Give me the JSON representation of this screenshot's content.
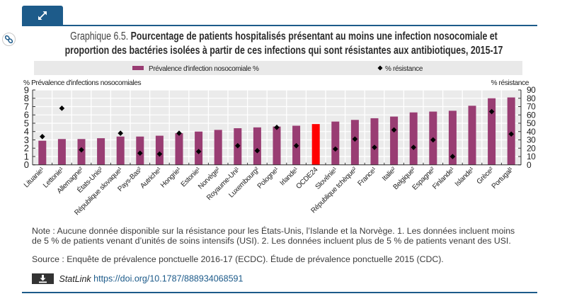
{
  "header": {
    "expand_icon": "expand-arrows-icon",
    "link_icon": "chain-link-icon"
  },
  "title": {
    "label": "Graphique 6.5.",
    "line1": "Pourcentage de patients hospitalisés présentant au moins une infection nosocomiale et",
    "line2": "proportion des bactéries isolées à partir de ces infections qui sont résistantes aux antibiotiques, 2015-17"
  },
  "colors": {
    "accent": "#1d5b8a",
    "bar": "#993d73",
    "highlight_bar": "#ff0000",
    "marker": "#000000",
    "plot_background": "#ebebeb",
    "legend_background": "#e9e9e9"
  },
  "chart_data": {
    "type": "bar",
    "title": "Pourcentage de patients hospitalisés présentant au moins une infection nosocomiale et proportion des bactéries isolées à partir de ces infections qui sont résistantes aux antibiotiques, 2015-17",
    "legend": [
      {
        "name": "Prévalence d'infection nosocomiale %",
        "marker": "bar"
      },
      {
        "name": "% résistance",
        "marker": "diamond"
      }
    ],
    "legend_position": "top",
    "xlabel": "",
    "ylabel": "% Prévalence d'infections nosocomiales",
    "y2label": "% résistance",
    "ylim": [
      0,
      9
    ],
    "y2lim": [
      0,
      90
    ],
    "yticks": [
      0,
      1,
      2,
      3,
      4,
      5,
      6,
      7,
      8,
      9
    ],
    "y2ticks": [
      0,
      10,
      20,
      30,
      40,
      50,
      60,
      70,
      80,
      90
    ],
    "grid": true,
    "highlight_category": "OCDE24",
    "categories": [
      "Lituanie¹",
      "Lettonie¹",
      "Allemagne²",
      "États-Unis²",
      "République slovaque¹",
      "Pays-Bas²",
      "Autriche¹",
      "Hongrie¹",
      "Estonie¹",
      "Norvège²",
      "Royaume-Uni¹",
      "Luxembourg²",
      "Pologne¹",
      "Irlande¹",
      "OCDE24",
      "Slovénie¹",
      "République tchèque²",
      "France¹",
      "Italie²",
      "Belgique²",
      "Espagne²",
      "Finlande¹",
      "Islande¹",
      "Grèce²",
      "Portugal¹"
    ],
    "series": [
      {
        "name": "Prévalence d'infection nosocomiale %",
        "type": "bar",
        "axis": "left",
        "values": [
          2.9,
          3.1,
          3.1,
          3.2,
          3.4,
          3.4,
          3.5,
          3.8,
          4.0,
          4.2,
          4.4,
          4.5,
          4.6,
          4.7,
          4.9,
          5.2,
          5.4,
          5.6,
          5.8,
          6.3,
          6.4,
          6.5,
          7.1,
          8.0,
          8.1
        ]
      },
      {
        "name": "% résistance",
        "type": "scatter",
        "axis": "right",
        "values": [
          34,
          68,
          18,
          null,
          38,
          14,
          13,
          38,
          16,
          null,
          23,
          17,
          45,
          23,
          null,
          19,
          31,
          21,
          42,
          21,
          30,
          10,
          null,
          64,
          37
        ]
      }
    ]
  },
  "notes": {
    "note_line1": "Note : Aucune donnée disponible sur la résistance pour les États-Unis, l’Islande et la Norvège. 1. Les données incluent moins",
    "note_line2": "de 5 % de patients venant d’unités de soins intensifs (USI). 2. Les données incluent plus de 5 % de patients venant des USI.",
    "source": "Source : Enquête de prévalence ponctuelle 2016-17 (ECDC). Étude de prévalence ponctuelle 2015 (CDC).",
    "statlink_label": "StatLink",
    "statlink_url": "https://doi.org/10.1787/888934068591",
    "download_icon": "download-icon"
  }
}
